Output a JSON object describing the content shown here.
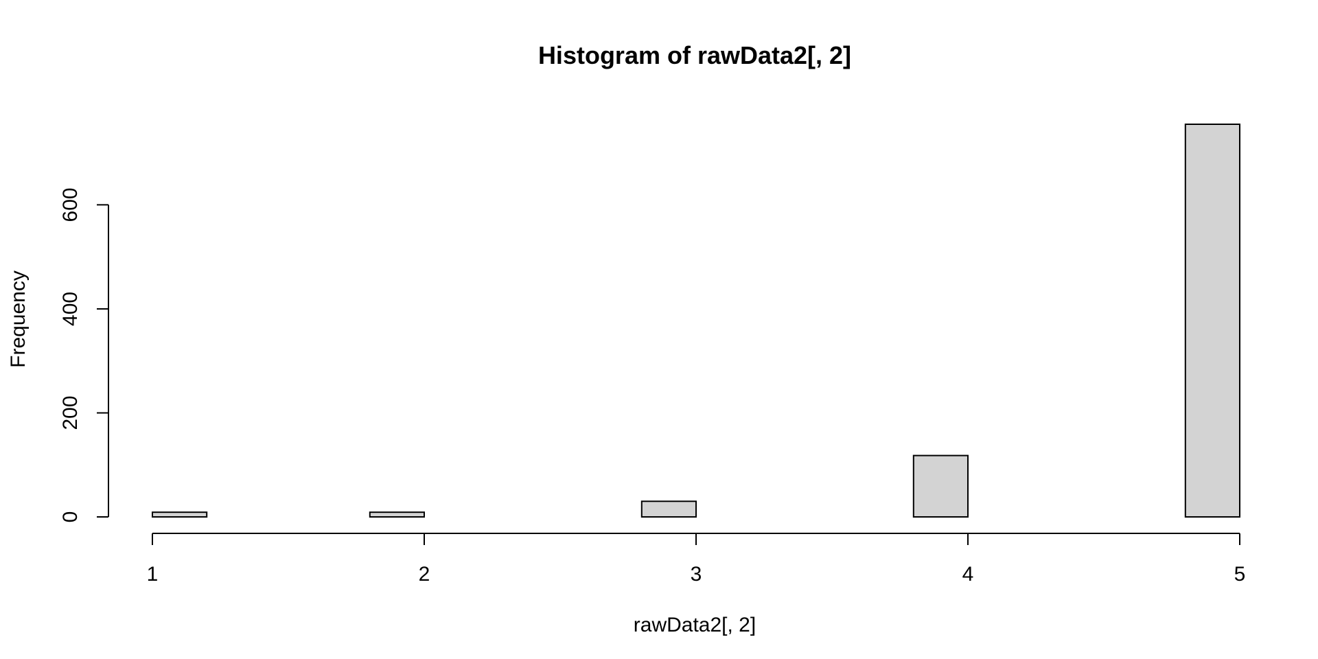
{
  "chart_data": {
    "type": "bar",
    "title": "Histogram of rawData2[, 2]",
    "xlabel": "rawData2[, 2]",
    "ylabel": "Frequency",
    "bins": [
      {
        "x0": 1.0,
        "x1": 1.2,
        "count": 9
      },
      {
        "x0": 1.2,
        "x1": 1.4,
        "count": 0
      },
      {
        "x0": 1.4,
        "x1": 1.6,
        "count": 0
      },
      {
        "x0": 1.6,
        "x1": 1.8,
        "count": 0
      },
      {
        "x0": 1.8,
        "x1": 2.0,
        "count": 9
      },
      {
        "x0": 2.0,
        "x1": 2.2,
        "count": 0
      },
      {
        "x0": 2.2,
        "x1": 2.4,
        "count": 0
      },
      {
        "x0": 2.4,
        "x1": 2.6,
        "count": 0
      },
      {
        "x0": 2.6,
        "x1": 2.8,
        "count": 0
      },
      {
        "x0": 2.8,
        "x1": 3.0,
        "count": 30
      },
      {
        "x0": 3.0,
        "x1": 3.2,
        "count": 0
      },
      {
        "x0": 3.2,
        "x1": 3.4,
        "count": 0
      },
      {
        "x0": 3.4,
        "x1": 3.6,
        "count": 0
      },
      {
        "x0": 3.6,
        "x1": 3.8,
        "count": 0
      },
      {
        "x0": 3.8,
        "x1": 4.0,
        "count": 118
      },
      {
        "x0": 4.0,
        "x1": 4.2,
        "count": 0
      },
      {
        "x0": 4.2,
        "x1": 4.4,
        "count": 0
      },
      {
        "x0": 4.4,
        "x1": 4.6,
        "count": 0
      },
      {
        "x0": 4.6,
        "x1": 4.8,
        "count": 0
      },
      {
        "x0": 4.8,
        "x1": 5.0,
        "count": 755
      }
    ],
    "x_ticks": [
      1,
      2,
      3,
      4,
      5
    ],
    "y_ticks": [
      0,
      200,
      400,
      600
    ],
    "xlim": [
      1,
      5
    ],
    "ylim": [
      0,
      755
    ],
    "bar_fill": "#d3d3d3",
    "bar_stroke": "#000000",
    "grid": false
  }
}
